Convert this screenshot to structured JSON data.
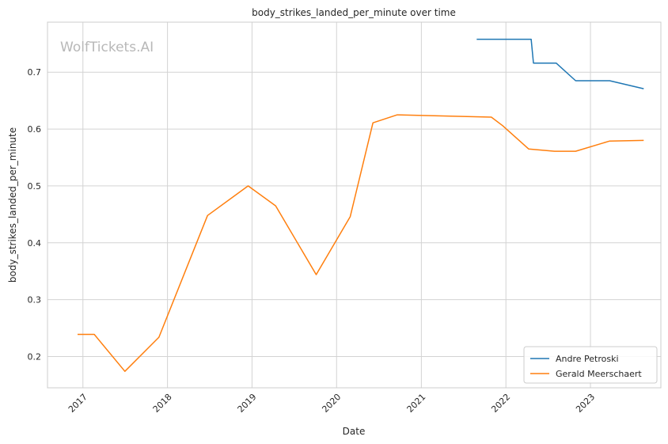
{
  "chart_data": {
    "type": "line",
    "title": "body_strikes_landed_per_minute over time",
    "xlabel": "Date",
    "ylabel": "body_strikes_landed_per_minute",
    "watermark": "WolfTickets.AI",
    "x_axis": {
      "type": "date",
      "range": [
        "2016-08-01",
        "2023-11-01"
      ],
      "ticks": [
        {
          "date": "2017-01-01",
          "label": "2017"
        },
        {
          "date": "2018-01-01",
          "label": "2018"
        },
        {
          "date": "2019-01-01",
          "label": "2019"
        },
        {
          "date": "2020-01-01",
          "label": "2020"
        },
        {
          "date": "2021-01-01",
          "label": "2021"
        },
        {
          "date": "2022-01-01",
          "label": "2022"
        },
        {
          "date": "2023-01-01",
          "label": "2023"
        }
      ]
    },
    "y_axis": {
      "range": [
        0.145,
        0.788
      ],
      "ticks": [
        {
          "value": 0.2,
          "label": "0.2"
        },
        {
          "value": 0.3,
          "label": "0.3"
        },
        {
          "value": 0.4,
          "label": "0.4"
        },
        {
          "value": 0.5,
          "label": "0.5"
        },
        {
          "value": 0.6,
          "label": "0.6"
        },
        {
          "value": 0.7,
          "label": "0.7"
        }
      ]
    },
    "grid": true,
    "legend": {
      "position": "bottom-right"
    },
    "series": [
      {
        "name": "Andre Petroski",
        "color": "#1f77b4",
        "points": [
          {
            "x": "2021-08-28",
            "y": 0.758
          },
          {
            "x": "2022-04-20",
            "y": 0.758
          },
          {
            "x": "2022-04-30",
            "y": 0.716
          },
          {
            "x": "2022-08-06",
            "y": 0.716
          },
          {
            "x": "2022-10-29",
            "y": 0.685
          },
          {
            "x": "2023-03-25",
            "y": 0.685
          },
          {
            "x": "2023-08-19",
            "y": 0.671
          }
        ]
      },
      {
        "name": "Gerald Meerschaert",
        "color": "#ff7f0e",
        "points": [
          {
            "x": "2016-12-09",
            "y": 0.239
          },
          {
            "x": "2017-02-19",
            "y": 0.239
          },
          {
            "x": "2017-07-01",
            "y": 0.174
          },
          {
            "x": "2017-11-25",
            "y": 0.234
          },
          {
            "x": "2018-06-23",
            "y": 0.448
          },
          {
            "x": "2018-12-15",
            "y": 0.5
          },
          {
            "x": "2019-04-13",
            "y": 0.465
          },
          {
            "x": "2019-10-05",
            "y": 0.344
          },
          {
            "x": "2020-02-29",
            "y": 0.446
          },
          {
            "x": "2020-06-06",
            "y": 0.611
          },
          {
            "x": "2020-09-19",
            "y": 0.625
          },
          {
            "x": "2021-10-30",
            "y": 0.621
          },
          {
            "x": "2021-12-18",
            "y": 0.606
          },
          {
            "x": "2022-04-09",
            "y": 0.565
          },
          {
            "x": "2022-07-30",
            "y": 0.561
          },
          {
            "x": "2022-10-29",
            "y": 0.561
          },
          {
            "x": "2023-03-25",
            "y": 0.579
          },
          {
            "x": "2023-08-19",
            "y": 0.58
          }
        ]
      }
    ]
  }
}
